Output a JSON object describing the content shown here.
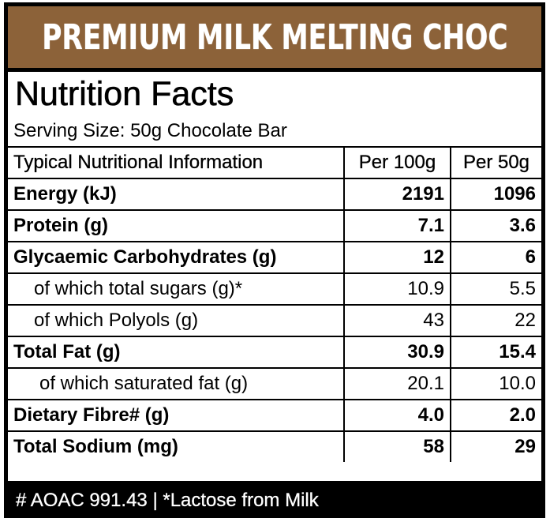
{
  "colors": {
    "banner_bg": "#8c6239",
    "frame": "#000000",
    "panel": "#ffffff",
    "footer_text": "#ffffff"
  },
  "product_name": "PREMIUM MILK MELTING CHOC",
  "title": "Nutrition Facts",
  "serving_size": "Serving Size: 50g Chocolate Bar",
  "table": {
    "headers": [
      "Typical Nutritional Information",
      "Per 100g",
      "Per 50g"
    ],
    "rows": [
      {
        "name": "Energy (kJ)",
        "per100": "2191",
        "per50": "1096"
      },
      {
        "name": "Protein (g)",
        "per100": "7.1",
        "per50": "3.6"
      },
      {
        "name": "Glycaemic Carbohydrates (g)",
        "per100": "12",
        "per50": "6"
      },
      {
        "name": "of which total sugars (g)*",
        "per100": "10.9",
        "per50": "5.5"
      },
      {
        "name": "of which Polyols (g)",
        "per100": "43",
        "per50": "22"
      },
      {
        "name": "Total Fat (g)",
        "per100": "30.9",
        "per50": "15.4"
      },
      {
        "name": "of which saturated fat (g)",
        "per100": "20.1",
        "per50": "10.0"
      },
      {
        "name": "Dietary Fibre# (g)",
        "per100": "4.0",
        "per50": "2.0"
      },
      {
        "name": "Total Sodium (mg)",
        "per100": "58",
        "per50": "29"
      }
    ]
  },
  "footer": "# AOAC 991.43  |  *Lactose from Milk"
}
